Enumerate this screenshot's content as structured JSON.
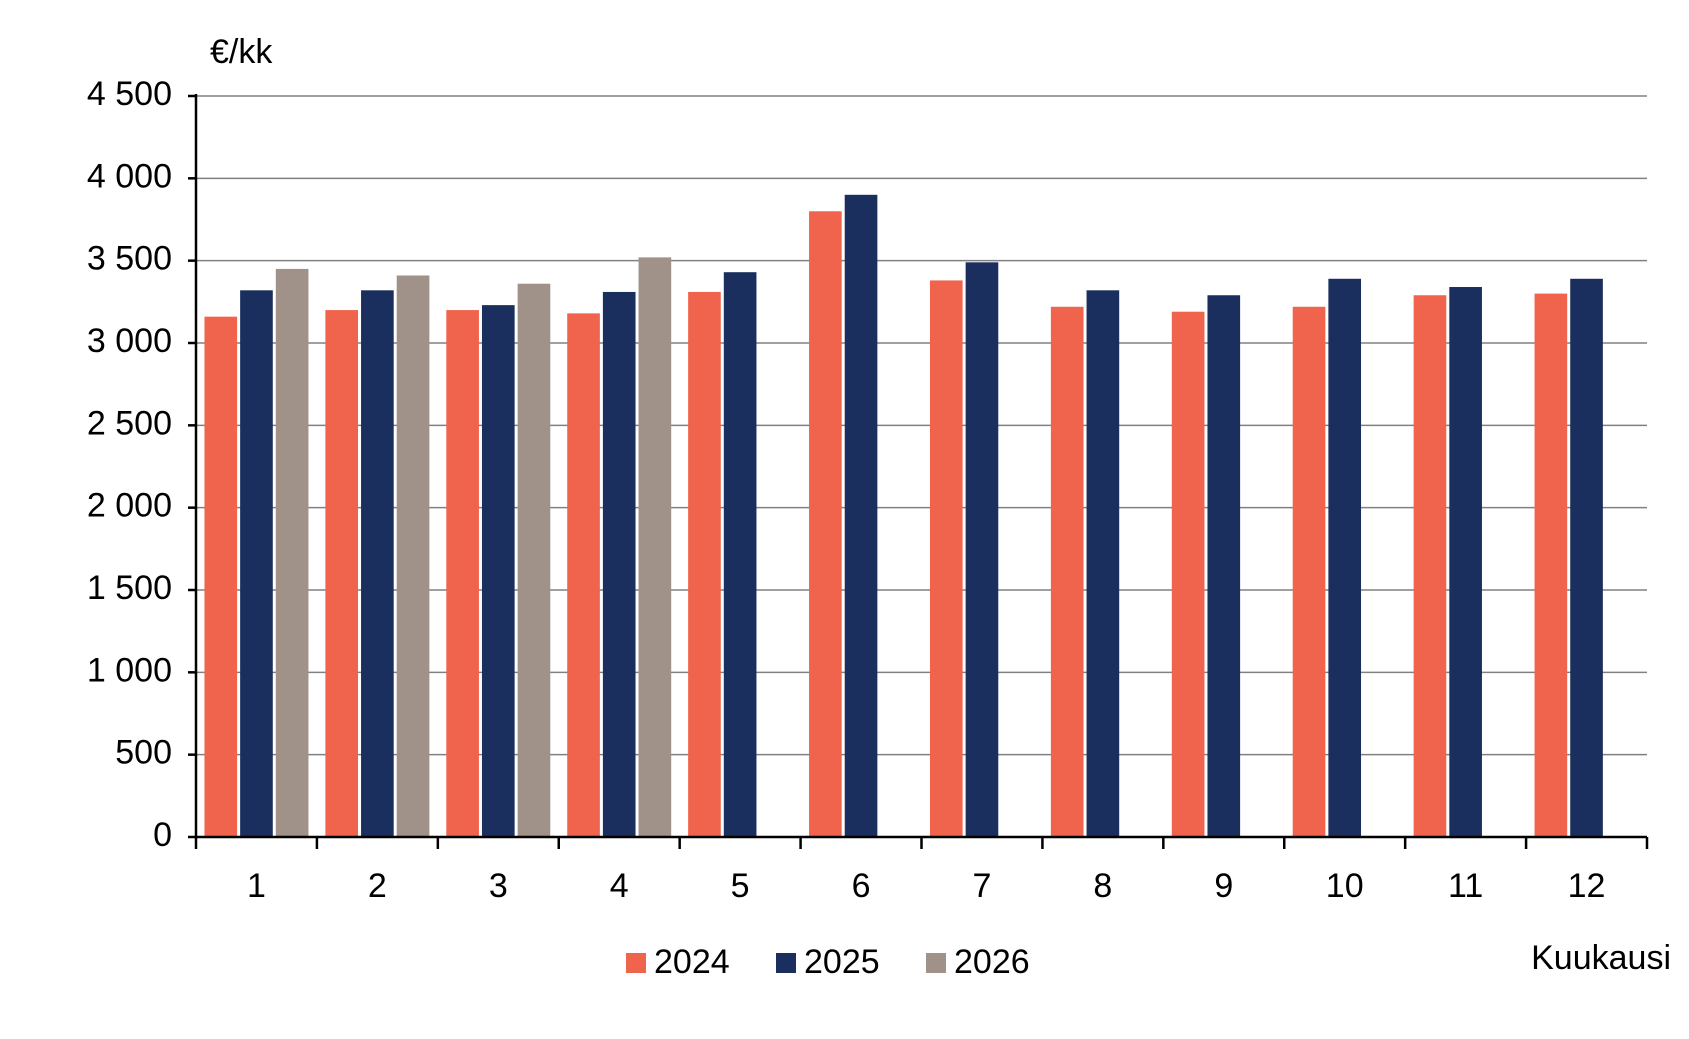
{
  "chart_data": {
    "type": "bar",
    "y_label": "€/kk",
    "x_label": "Kuukausi",
    "categories": [
      "1",
      "2",
      "3",
      "4",
      "5",
      "6",
      "7",
      "8",
      "9",
      "10",
      "11",
      "12"
    ],
    "series": [
      {
        "name": "2024",
        "color": "#f0644e",
        "values": [
          3160,
          3200,
          3200,
          3180,
          3310,
          3800,
          3380,
          3220,
          3190,
          3220,
          3290,
          3300
        ]
      },
      {
        "name": "2025",
        "color": "#1b2f5e",
        "values": [
          3320,
          3320,
          3230,
          3310,
          3430,
          3900,
          3490,
          3320,
          3290,
          3390,
          3340,
          3390
        ]
      },
      {
        "name": "2026",
        "color": "#a09189",
        "values": [
          3450,
          3410,
          3360,
          3520,
          null,
          null,
          null,
          null,
          null,
          null,
          null,
          null
        ]
      }
    ],
    "ylim": [
      0,
      4500
    ],
    "yticks": [
      0,
      500,
      {
        "value": 1000,
        "label": "1 000"
      },
      {
        "value": 1500,
        "label": "1 500"
      },
      {
        "value": 2000,
        "label": "2 000"
      },
      {
        "value": 2500,
        "label": "2 500"
      },
      {
        "value": 3000,
        "label": "3 000"
      },
      {
        "value": 3500,
        "label": "3 500"
      },
      {
        "value": 4000,
        "label": "4 000"
      },
      {
        "value": 4500,
        "label": "4 500"
      }
    ],
    "grid": true
  }
}
